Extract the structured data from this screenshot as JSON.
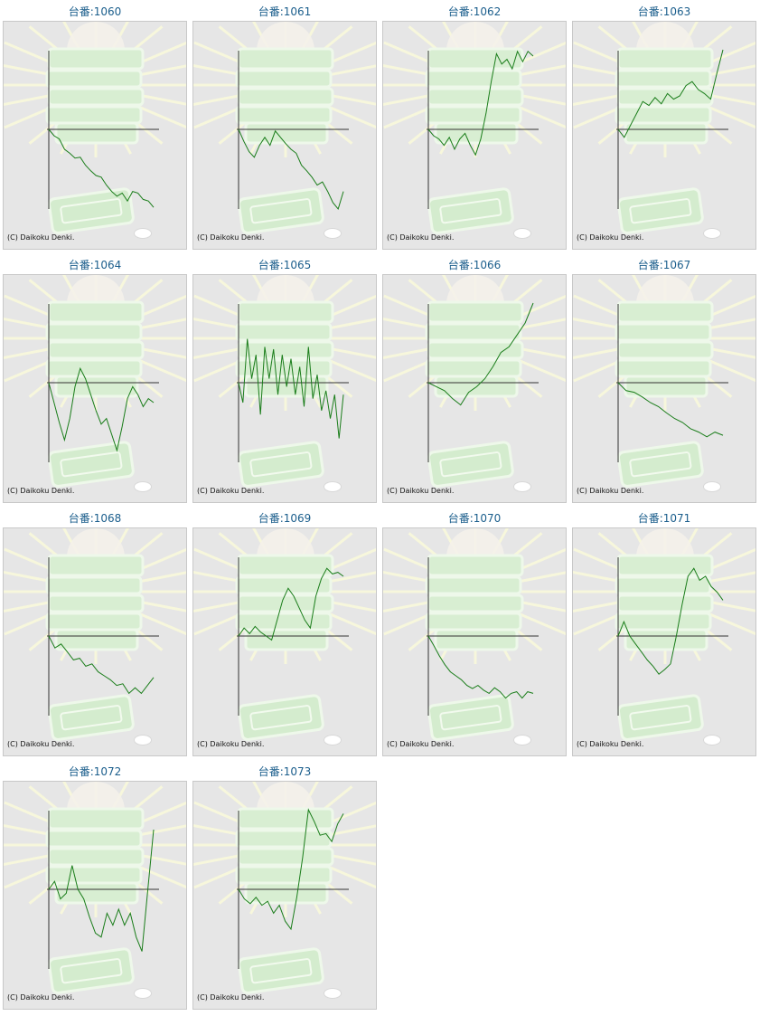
{
  "copyright_text": "(C) Daikoku Denki.",
  "colors": {
    "line": "#1a7d1a",
    "axis": "#333333",
    "title": "#1b5e8c",
    "panel": "#e6e6e6"
  },
  "chart_data": [
    {
      "type": "line",
      "title": "台番:1060",
      "ylim": [
        -1,
        1
      ],
      "y": [
        0,
        -0.08,
        -0.12,
        -0.25,
        -0.3,
        -0.36,
        -0.35,
        -0.45,
        -0.52,
        -0.58,
        -0.6,
        -0.7,
        -0.78,
        -0.84,
        -0.8,
        -0.9,
        -0.78,
        -0.8,
        -0.88,
        -0.9,
        -0.98
      ]
    },
    {
      "type": "line",
      "title": "台番:1061",
      "ylim": [
        -1,
        1
      ],
      "y": [
        0,
        -0.15,
        -0.28,
        -0.35,
        -0.2,
        -0.1,
        -0.2,
        -0.02,
        -0.1,
        -0.18,
        -0.25,
        -0.3,
        -0.45,
        -0.52,
        -0.6,
        -0.7,
        -0.66,
        -0.78,
        -0.92,
        -1.0,
        -0.78
      ]
    },
    {
      "type": "line",
      "title": "台番:1062",
      "ylim": [
        -1,
        1
      ],
      "y": [
        0,
        -0.08,
        -0.12,
        -0.2,
        -0.1,
        -0.25,
        -0.12,
        -0.05,
        -0.2,
        -0.32,
        -0.12,
        0.2,
        0.6,
        0.95,
        0.82,
        0.88,
        0.76,
        0.98,
        0.85,
        0.98,
        0.92
      ]
    },
    {
      "type": "line",
      "title": "台番:1063",
      "ylim": [
        -1,
        1
      ],
      "y": [
        0,
        -0.1,
        0.05,
        0.2,
        0.35,
        0.3,
        0.4,
        0.32,
        0.45,
        0.38,
        0.42,
        0.55,
        0.6,
        0.5,
        0.45,
        0.38,
        0.7,
        1.0
      ]
    },
    {
      "type": "line",
      "title": "台番:1064",
      "ylim": [
        -1,
        1
      ],
      "y": [
        0,
        -0.25,
        -0.5,
        -0.72,
        -0.45,
        -0.05,
        0.18,
        0.05,
        -0.15,
        -0.35,
        -0.52,
        -0.45,
        -0.65,
        -0.85,
        -0.55,
        -0.2,
        -0.05,
        -0.15,
        -0.3,
        -0.2,
        -0.25
      ]
    },
    {
      "type": "line",
      "title": "台番:1065",
      "ylim": [
        -1,
        1
      ],
      "y": [
        0,
        -0.25,
        0.55,
        0.05,
        0.35,
        -0.4,
        0.45,
        0.05,
        0.42,
        -0.15,
        0.35,
        -0.05,
        0.3,
        -0.15,
        0.2,
        -0.3,
        0.45,
        -0.2,
        0.1,
        -0.35,
        -0.1,
        -0.45,
        -0.15,
        -0.7,
        -0.15
      ]
    },
    {
      "type": "line",
      "title": "台番:1066",
      "ylim": [
        -1,
        1
      ],
      "y": [
        0,
        -0.05,
        -0.1,
        -0.2,
        -0.28,
        -0.12,
        -0.05,
        0.05,
        0.2,
        0.38,
        0.45,
        0.6,
        0.75,
        1.0
      ]
    },
    {
      "type": "line",
      "title": "台番:1067",
      "ylim": [
        -1,
        1
      ],
      "y": [
        0,
        -0.1,
        -0.12,
        -0.18,
        -0.25,
        -0.3,
        -0.38,
        -0.45,
        -0.5,
        -0.58,
        -0.62,
        -0.68,
        -0.62,
        -0.66
      ]
    },
    {
      "type": "line",
      "title": "台番:1068",
      "ylim": [
        -1,
        1
      ],
      "y": [
        0,
        -0.15,
        -0.1,
        -0.2,
        -0.3,
        -0.28,
        -0.38,
        -0.35,
        -0.45,
        -0.5,
        -0.55,
        -0.62,
        -0.6,
        -0.72,
        -0.65,
        -0.72,
        -0.62,
        -0.52
      ]
    },
    {
      "type": "line",
      "title": "台番:1069",
      "ylim": [
        -1,
        1
      ],
      "y": [
        0,
        0.1,
        0.03,
        0.12,
        0.05,
        0.0,
        -0.05,
        0.2,
        0.45,
        0.6,
        0.5,
        0.35,
        0.2,
        0.1,
        0.5,
        0.72,
        0.85,
        0.78,
        0.8,
        0.75
      ]
    },
    {
      "type": "line",
      "title": "台番:1070",
      "ylim": [
        -1,
        1
      ],
      "y": [
        0,
        -0.12,
        -0.25,
        -0.36,
        -0.45,
        -0.5,
        -0.55,
        -0.62,
        -0.66,
        -0.62,
        -0.68,
        -0.72,
        -0.65,
        -0.7,
        -0.78,
        -0.72,
        -0.7,
        -0.78,
        -0.7,
        -0.72
      ]
    },
    {
      "type": "line",
      "title": "台番:1071",
      "ylim": [
        -1,
        1
      ],
      "y": [
        0,
        0.18,
        0.0,
        -0.1,
        -0.2,
        -0.3,
        -0.38,
        -0.48,
        -0.42,
        -0.35,
        0.0,
        0.4,
        0.75,
        0.85,
        0.7,
        0.75,
        0.62,
        0.55,
        0.45
      ]
    },
    {
      "type": "line",
      "title": "台番:1072",
      "ylim": [
        -1,
        1
      ],
      "y": [
        0,
        0.1,
        -0.12,
        -0.05,
        0.3,
        0.0,
        -0.12,
        -0.35,
        -0.55,
        -0.6,
        -0.3,
        -0.45,
        -0.25,
        -0.45,
        -0.3,
        -0.6,
        -0.78,
        0.0,
        0.75
      ]
    },
    {
      "type": "line",
      "title": "台番:1073",
      "ylim": [
        -1,
        1
      ],
      "y": [
        0,
        -0.12,
        -0.18,
        -0.1,
        -0.2,
        -0.15,
        -0.3,
        -0.2,
        -0.4,
        -0.5,
        -0.1,
        0.4,
        1.0,
        0.85,
        0.68,
        0.7,
        0.6,
        0.82,
        0.95
      ]
    }
  ]
}
